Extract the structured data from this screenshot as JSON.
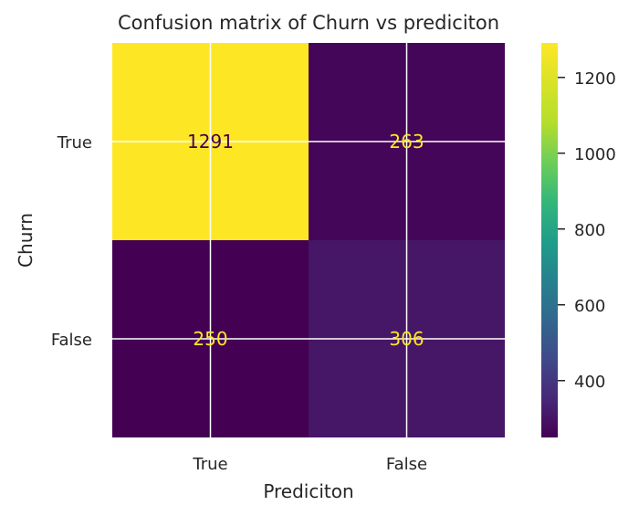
{
  "chart_data": {
    "type": "heatmap",
    "title": "Confusion matrix of Churn vs prediciton",
    "xlabel": "Prediciton",
    "ylabel": "Churn",
    "x_categories": [
      "True",
      "False"
    ],
    "y_categories": [
      "True",
      "False"
    ],
    "values": [
      [
        1291,
        263
      ],
      [
        250,
        306
      ]
    ],
    "colormap": "viridis",
    "colorbar_range": [
      250,
      1291
    ],
    "colorbar_ticks": [
      400,
      600,
      800,
      1000,
      1200
    ],
    "grid": true,
    "text_colors": {
      "on_bright": "#440154",
      "on_dark": "#fde725"
    }
  }
}
